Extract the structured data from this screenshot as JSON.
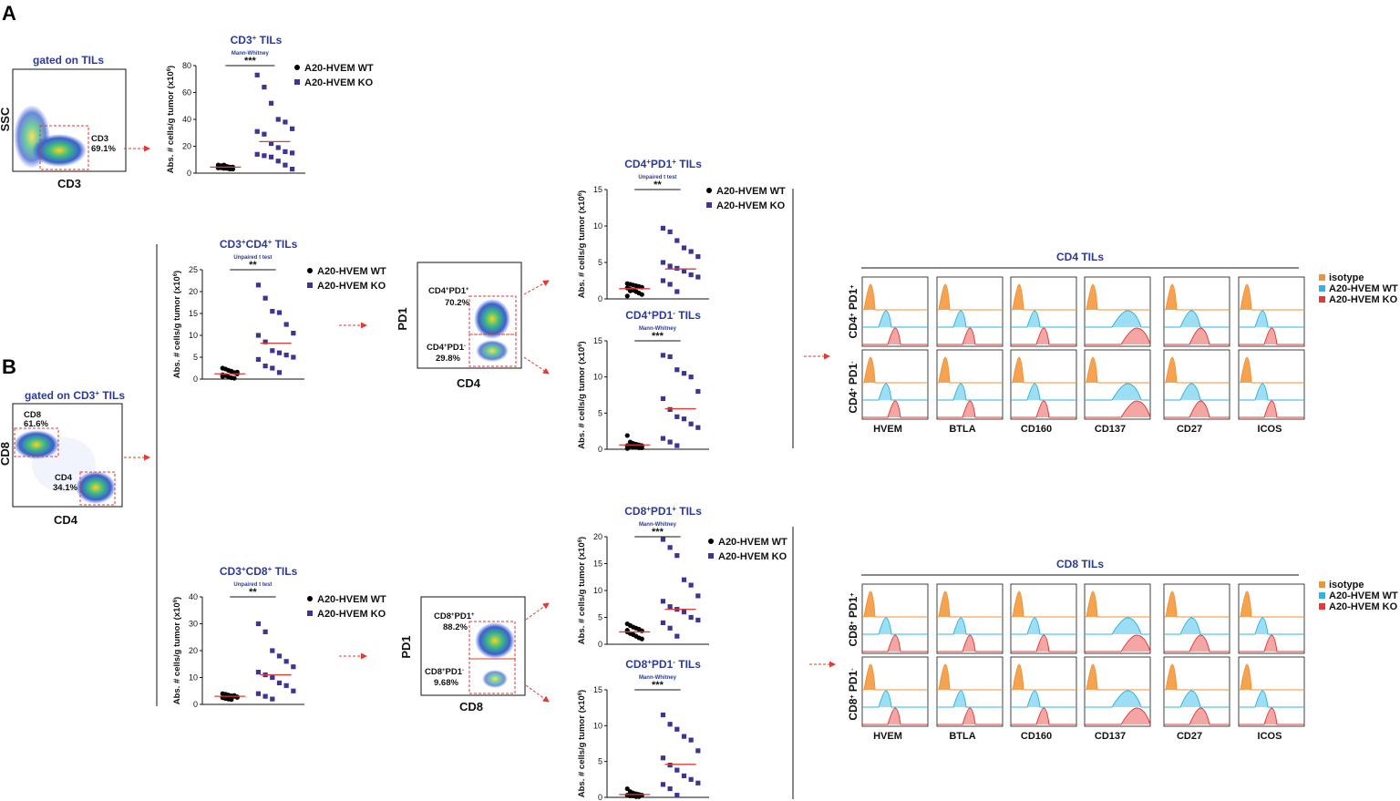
{
  "panel_labels": {
    "a": "A",
    "b": "B"
  },
  "legend_scatter": {
    "wt": "A20-HVEM WT",
    "ko": "A20-HVEM KO"
  },
  "legend_hist": {
    "iso": "isotype",
    "wt": "A20-HVEM WT",
    "ko": "A20-HVEM KO"
  },
  "colors": {
    "wt": "#000000",
    "ko": "#3a3596",
    "mean": "#e53935",
    "gate": "#e53935",
    "iso": "#f39233",
    "hist_wt": "#29b6e6",
    "hist_ko": "#e53935",
    "title": "#2b3a9b"
  },
  "flow_a": {
    "gate_title": "gated on TILs",
    "ylabel": "SSC",
    "xlabel": "CD3",
    "gate_name": "CD3",
    "gate_pct": "69.1%"
  },
  "flow_b": {
    "gate_title": "gated on CD3",
    "gate_title_sup": "+",
    "gate_title_end": " TILs",
    "ylabel": "CD8",
    "xlabel": "CD4",
    "g1_name": "CD8",
    "g1_pct": "61.6%",
    "g2_name": "CD4",
    "g2_pct": "34.1%"
  },
  "flow_cd4": {
    "ylabel": "PD1",
    "xlabel": "CD4",
    "g1_a": "CD4",
    "g1_b": "PD1",
    "g1_sup2": "+",
    "g1_pct": "70.2%",
    "g2_a": "CD4",
    "g2_b": "PD1",
    "g2_sup2": "-",
    "g2_pct": "29.8%"
  },
  "flow_cd8": {
    "ylabel": "PD1",
    "xlabel": "CD8",
    "g1_a": "CD8",
    "g1_b": "PD1",
    "g1_sup2": "+",
    "g1_pct": "88.2%",
    "g2_a": "CD8",
    "g2_b": "PD1",
    "g2_sup2": "-",
    "g2_pct": "9.68%"
  },
  "hist_cd4": {
    "title": "CD4 TILs",
    "row1_a": "CD4",
    "row1_b": " PD1",
    "row1_sup2": "+",
    "row2_a": "CD4",
    "row2_b": " PD1",
    "row2_sup2": "-",
    "markers": [
      "HVEM",
      "BTLA",
      "CD160",
      "CD137",
      "CD27",
      "ICOS"
    ]
  },
  "hist_cd8": {
    "title": "CD8 TILs",
    "row1_a": "CD8",
    "row1_b": " PD1",
    "row1_sup2": "+",
    "row2_a": "CD8",
    "row2_b": " PD1",
    "row2_sup2": "-",
    "markers": [
      "HVEM",
      "BTLA",
      "CD160",
      "CD137",
      "CD27",
      "ICOS"
    ]
  },
  "chart_data": [
    {
      "id": "cd3",
      "type": "scatter",
      "title": "CD3+ TILs",
      "title_main": "CD3",
      "title_sup": "+",
      "title_end": " TILs",
      "test": "Mann-Whitney",
      "sig": "***",
      "ylabel": "Abs. # cells/g tumor (x10",
      "ylabel_sup": "6",
      "ylabel_end": ")",
      "ylim": [
        0,
        80
      ],
      "yticks": [
        "0",
        "20",
        "40",
        "60",
        "80"
      ],
      "series": [
        {
          "name": "A20-HVEM WT",
          "mean": 4.5,
          "values": [
            6,
            5.5,
            5,
            5,
            4.5,
            4.5,
            4,
            4,
            3.5,
            3.5,
            3,
            3,
            4,
            5,
            6
          ]
        },
        {
          "name": "A20-HVEM KO",
          "mean": 23.5,
          "values": [
            73,
            64,
            52,
            40,
            38,
            33,
            31,
            29,
            22,
            19,
            16,
            15,
            14,
            13,
            12,
            9,
            6,
            3
          ]
        }
      ]
    },
    {
      "id": "cd3cd4",
      "type": "scatter",
      "title": "CD3+CD4+ TILs",
      "title_main": "CD3",
      "title_sup": "+",
      "title_mid": "CD4",
      "title_sup2": "+",
      "title_end": " TILs",
      "test": "Unpaired t test",
      "sig": "**",
      "ylabel": "Abs. # cells/g tumor (x10",
      "ylabel_sup": "6",
      "ylabel_end": ")",
      "ylim": [
        0,
        25
      ],
      "yticks": [
        "0",
        "5",
        "10",
        "15",
        "20",
        "25"
      ],
      "series": [
        {
          "name": "A20-HVEM WT",
          "mean": 1.2,
          "values": [
            2.5,
            2.3,
            2.0,
            1.8,
            1.5,
            1.2,
            1.0,
            0.8,
            0.5,
            0.3,
            0.2,
            1.6,
            0.6
          ]
        },
        {
          "name": "A20-HVEM KO",
          "mean": 8.2,
          "values": [
            21.5,
            18.5,
            15.5,
            15.2,
            12.5,
            10.5,
            10.0,
            8.5,
            6.5,
            6.0,
            5.5,
            5.0,
            4.5,
            3.0,
            2.5,
            1.5
          ]
        }
      ]
    },
    {
      "id": "cd3cd8",
      "type": "scatter",
      "title": "CD3+CD8+ TILs",
      "title_main": "CD3",
      "title_sup": "+",
      "title_mid": "CD8",
      "title_sup2": "+",
      "title_end": " TILs",
      "test": "Unpaired t test",
      "sig": "**",
      "ylabel": "Abs. # cells/g tumor (x10",
      "ylabel_sup": "6",
      "ylabel_end": ")",
      "ylim": [
        0,
        40
      ],
      "yticks": [
        "0",
        "10",
        "20",
        "30",
        "40"
      ],
      "series": [
        {
          "name": "A20-HVEM WT",
          "mean": 3,
          "values": [
            4,
            3.8,
            3.5,
            3.2,
            3,
            2.8,
            2.5,
            2.2,
            2,
            1.8,
            3.3,
            2.6
          ]
        },
        {
          "name": "A20-HVEM KO",
          "mean": 11,
          "values": [
            30,
            27,
            20,
            18,
            16,
            14,
            12,
            11,
            10,
            8,
            7,
            5,
            4,
            3,
            2
          ]
        }
      ]
    },
    {
      "id": "cd4pd1pos",
      "type": "scatter",
      "title": "CD4+PD1+ TILs",
      "title_main": "CD4",
      "title_sup": "+",
      "title_mid": "PD1",
      "title_sup2": "+",
      "title_end": " TILs",
      "test": "Unpaired t test",
      "sig": "**",
      "ylabel": "Abs. # cells/g tumor (x10",
      "ylabel_sup": "6",
      "ylabel_end": ")",
      "ylim": [
        0,
        15
      ],
      "yticks": [
        "0",
        "5",
        "10",
        "15"
      ],
      "series": [
        {
          "name": "A20-HVEM WT",
          "mean": 1.4,
          "values": [
            2.1,
            2.0,
            1.9,
            1.8,
            1.7,
            1.6,
            1.5,
            1.3,
            1.2,
            1.0,
            0.8,
            0.6,
            0.4,
            1.1
          ]
        },
        {
          "name": "A20-HVEM KO",
          "mean": 4.1,
          "values": [
            9.7,
            9.2,
            8.0,
            7.0,
            6.5,
            5.8,
            5.0,
            4.5,
            4.2,
            3.8,
            3.3,
            3.0,
            2.5,
            2.0,
            1.0
          ]
        }
      ]
    },
    {
      "id": "cd4pd1neg",
      "type": "scatter",
      "title": "CD4+PD1- TILs",
      "title_main": "CD4",
      "title_sup": "+",
      "title_mid": "PD1",
      "title_sup2": "-",
      "title_end": " TILs",
      "test": "Mann-Whitney",
      "sig": "***",
      "ylabel": "Abs. # cells/g tumor (x10",
      "ylabel_sup": "6",
      "ylabel_end": ")",
      "ylim": [
        0,
        15
      ],
      "yticks": [
        "0",
        "5",
        "10",
        "15"
      ],
      "series": [
        {
          "name": "A20-HVEM WT",
          "mean": 0.6,
          "values": [
            1.9,
            1.0,
            0.8,
            0.7,
            0.6,
            0.5,
            0.5,
            0.4,
            0.3,
            0.3,
            0.2,
            0.2,
            0.1
          ]
        },
        {
          "name": "A20-HVEM KO",
          "mean": 5.6,
          "values": [
            13,
            12.8,
            11,
            10.5,
            10,
            8,
            7,
            5.5,
            4.5,
            4.2,
            3.5,
            3,
            1.5,
            1,
            0.5
          ]
        }
      ]
    },
    {
      "id": "cd8pd1pos",
      "type": "scatter",
      "title": "CD8+PD1+ TILs",
      "title_main": "CD8",
      "title_sup": "+",
      "title_mid": "PD1",
      "title_sup2": "+",
      "title_end": " TILs",
      "test": "Mann-Whitney",
      "sig": "***",
      "ylabel": "Abs. # cells/g tumor (x10",
      "ylabel_sup": "6",
      "ylabel_end": ")",
      "ylim": [
        0,
        20
      ],
      "yticks": [
        "0",
        "5",
        "10",
        "15",
        "20"
      ],
      "series": [
        {
          "name": "A20-HVEM WT",
          "mean": 2.3,
          "values": [
            3.8,
            3.5,
            3.2,
            3.0,
            2.8,
            2.5,
            2.3,
            2.0,
            1.8,
            1.5,
            1.2,
            1.0,
            2.6
          ]
        },
        {
          "name": "A20-HVEM KO",
          "mean": 6.5,
          "values": [
            19.5,
            18,
            16.5,
            12,
            11,
            9,
            8,
            7,
            6.5,
            6,
            5,
            4.5,
            4,
            3,
            1.5
          ]
        }
      ]
    },
    {
      "id": "cd8pd1neg",
      "type": "scatter",
      "title": "CD8+PD1- TILs",
      "title_main": "CD8",
      "title_sup": "+",
      "title_mid": "PD1",
      "title_sup2": "-",
      "title_end": " TILs",
      "test": "Mann-Whitney",
      "sig": "***",
      "ylabel": "Abs. # cells/g tumor (x10",
      "ylabel_sup": "6",
      "ylabel_end": ")",
      "ylim": [
        0,
        15
      ],
      "yticks": [
        "0",
        "5",
        "10",
        "15"
      ],
      "series": [
        {
          "name": "A20-HVEM WT",
          "mean": 0.4,
          "values": [
            1.2,
            0.8,
            0.6,
            0.5,
            0.4,
            0.3,
            0.3,
            0.2,
            0.2,
            0.1,
            0.1
          ]
        },
        {
          "name": "A20-HVEM KO",
          "mean": 4.6,
          "values": [
            11.5,
            10.2,
            9.5,
            8.5,
            8.0,
            6.5,
            5.5,
            4.5,
            3.8,
            3.0,
            2.5,
            2.0,
            1.8,
            1.2,
            0.3
          ]
        }
      ]
    }
  ]
}
